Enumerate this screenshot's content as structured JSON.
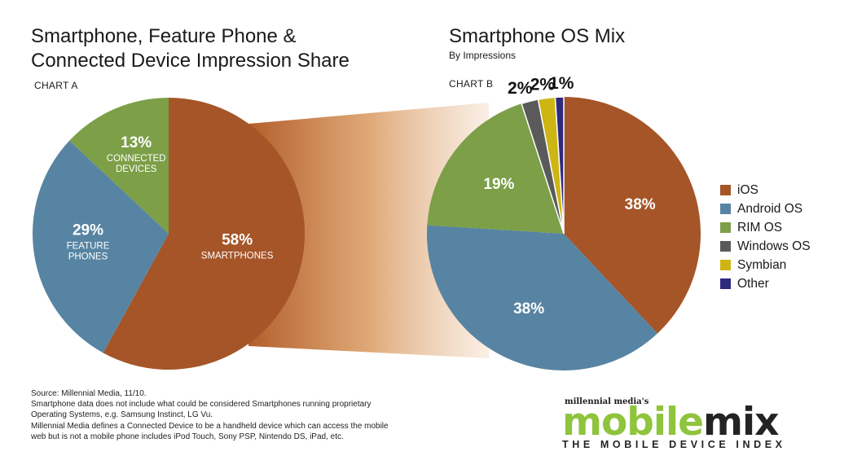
{
  "chart_data": [
    {
      "type": "pie",
      "title": "Smartphone, Feature Phone & Connected Device Impression Share",
      "title_lines": [
        "Smartphone, Feature Phone &",
        "Connected Device Impression Share"
      ],
      "label": "CHART A",
      "slices": [
        {
          "name": "SMARTPHONES",
          "value": 58,
          "value_label": "58%",
          "name_lines": [
            "SMARTPHONES"
          ],
          "color": "#a55528"
        },
        {
          "name": "FEATURE PHONES",
          "value": 29,
          "value_label": "29%",
          "name_lines": [
            "FEATURE",
            "PHONES"
          ],
          "color": "#5784a2"
        },
        {
          "name": "CONNECTED DEVICES",
          "value": 13,
          "value_label": "13%",
          "name_lines": [
            "CONNECTED",
            "DEVICES"
          ],
          "color": "#7c9f48"
        }
      ]
    },
    {
      "type": "pie",
      "title": "Smartphone OS Mix",
      "subtitle": "By Impressions",
      "label": "CHART B",
      "legend_position": "right",
      "slices": [
        {
          "name": "iOS",
          "value": 38,
          "value_label": "38%",
          "color": "#a55528"
        },
        {
          "name": "Android OS",
          "value": 38,
          "value_label": "38%",
          "color": "#5784a2"
        },
        {
          "name": "RIM OS",
          "value": 19,
          "value_label": "19%",
          "color": "#7c9f48"
        },
        {
          "name": "Windows OS",
          "value": 2,
          "value_label": "2%",
          "color": "#5a5a5a"
        },
        {
          "name": "Symbian",
          "value": 2,
          "value_label": "2%",
          "color": "#cdb514"
        },
        {
          "name": "Other",
          "value": 1,
          "value_label": "1%",
          "color": "#2e2a7e"
        }
      ]
    }
  ],
  "source_lines": [
    "Source: Millennial Media, 11/10.",
    "Smartphone data does not include what could be considered Smartphones running proprietary",
    "Operating Systems, e.g. Samsung Instinct, LG Vu.",
    "Millennial Media defines a Connected Device  to be a  handheld device which can access the mobile",
    "web but is not a mobile phone includes iPod Touch, Sony PSP, Nintendo DS, iPad, etc."
  ],
  "logo": {
    "small": "millennial media's",
    "part1": "mobile",
    "part2": "mix",
    "tagline": "THE MOBILE DEVICE INDEX"
  }
}
